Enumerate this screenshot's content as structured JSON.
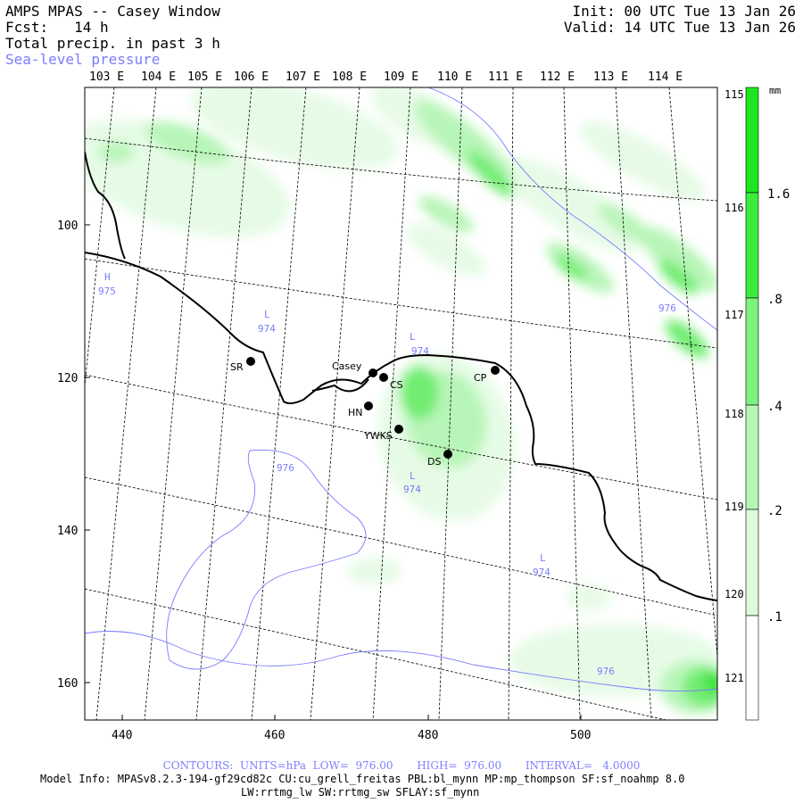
{
  "header": {
    "title": "AMPS MPAS -- Casey Window",
    "fcst": "Fcst:   14 h",
    "field": "Total precip. in past 3 h",
    "overlay": "Sea-level pressure",
    "init": "Init: 00 UTC Tue 13 Jan 26",
    "valid": "Valid: 14 UTC Tue 13 Jan 26"
  },
  "top_lon_labels": [
    "103 E",
    "104 E",
    "105 E",
    "106 E",
    "107 E",
    "108 E",
    "109 E",
    "110 E",
    "111 E",
    "112 E",
    "113 E",
    "114 E"
  ],
  "right_lon_labels": [
    "115 E",
    "116 E",
    "117 E",
    "118 E",
    "119 E",
    "120 E",
    "121 E"
  ],
  "x_ticks": [
    "440",
    "460",
    "480",
    "500"
  ],
  "y_ticks": [
    "100",
    "120",
    "140",
    "160"
  ],
  "colorbar": {
    "unit": "mm",
    "labels": [
      "1.6",
      ".8",
      ".4",
      ".2",
      ".1"
    ],
    "colors": [
      "#1ee61e",
      "#3cec3c",
      "#7ef27e",
      "#b6f6b6",
      "#dcfadc",
      "#f2fef2",
      "#ffffff"
    ]
  },
  "stations": [
    {
      "name": "SR"
    },
    {
      "name": "Casey"
    },
    {
      "name": "CS"
    },
    {
      "name": "HN"
    },
    {
      "name": "YWKS"
    },
    {
      "name": "DS"
    },
    {
      "name": "CP"
    }
  ],
  "pressure_labels": [
    {
      "kind": "H",
      "value": "975"
    },
    {
      "kind": "L",
      "value": "974"
    },
    {
      "kind": "L",
      "value": "974"
    },
    {
      "kind": "L",
      "value": "974"
    },
    {
      "kind": "L",
      "value": "974"
    },
    {
      "kind": "",
      "value": "976"
    },
    {
      "kind": "",
      "value": "976"
    },
    {
      "kind": "",
      "value": "976"
    }
  ],
  "footer": {
    "contours": "CONTOURS:  UNITS=hPa  LOW=  976.00       HIGH=  976.00       INTERVAL=   4.0000",
    "model_line1": "Model Info: MPASv8.2.3-194-gf29cd82c CU:cu_grell_freitas PBL:bl_mynn MP:mp_thompson SF:sf_noahmp 8.0",
    "model_line2": "LW:rrtmg_lw SW:rrtmg_sw SFLAY:sf_mynn"
  }
}
